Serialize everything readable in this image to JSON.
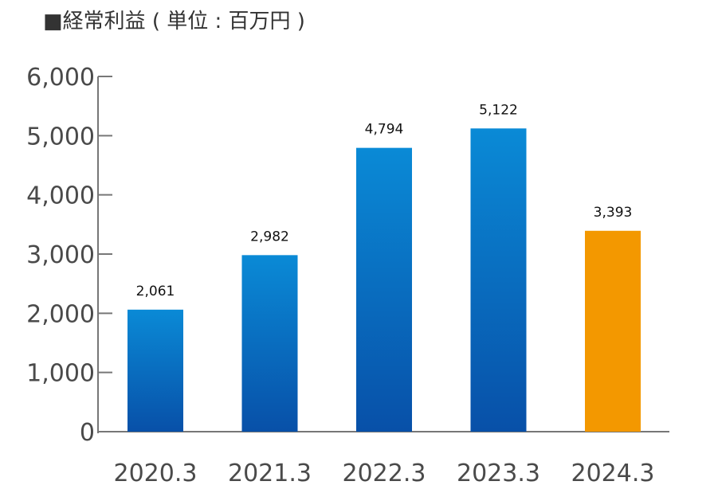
{
  "chart_data": {
    "type": "bar",
    "title": "■経常利益 ( 単位 : 百万円 )",
    "categories": [
      "2020.3",
      "2021.3",
      "2022.3",
      "2023.3",
      "2024.3"
    ],
    "values": [
      2061,
      2982,
      4794,
      5122,
      3393
    ],
    "value_labels": [
      "2,061",
      "2,982",
      "4,794",
      "5,122",
      "3,393"
    ],
    "ylim": [
      0,
      6000
    ],
    "yticks": [
      0,
      1000,
      2000,
      3000,
      4000,
      5000,
      6000
    ],
    "ytick_labels": [
      "0",
      "1,000",
      "2,000",
      "3,000",
      "4,000",
      "5,000",
      "6,000"
    ],
    "grid": false,
    "colors": {
      "bar_top": "#0a8ad6",
      "bar_bottom": "#0850a8",
      "highlight": "#f39800",
      "axis": "#777777"
    },
    "highlight_category": "2024.3"
  }
}
